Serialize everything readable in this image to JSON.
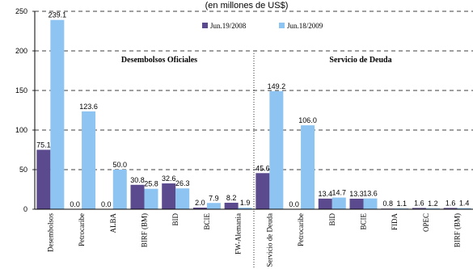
{
  "chart_data": {
    "type": "bar",
    "subtitle": "(en millones de US$)",
    "categories": [
      "Desembolsos",
      "Petrocaribe",
      "ALBA",
      "BIRF (BM)",
      "BID",
      "BCIE",
      "FW-Alemania",
      "Servicio de Deuda",
      "Petrocaribe",
      "BID",
      "BCIE",
      "FIDA",
      "OPEC",
      "BIRF (BM)"
    ],
    "series": [
      {
        "name": "Jun.19/2008",
        "color": "#5b4a8e",
        "values": [
          75.1,
          0.0,
          0.0,
          30.8,
          32.6,
          2.0,
          8.2,
          45.6,
          0.0,
          13.4,
          13.3,
          0.8,
          1.6,
          1.6
        ]
      },
      {
        "name": "Jun.18/2009",
        "color": "#8ec4f2",
        "values": [
          239.1,
          123.6,
          50.0,
          25.8,
          26.3,
          7.9,
          1.9,
          149.2,
          106.0,
          14.7,
          13.6,
          1.1,
          1.2,
          1.4
        ]
      }
    ],
    "value_labels": [
      [
        "75.1",
        "0.0",
        "0.0",
        "30.8",
        "32.6",
        "2.0",
        "8.2",
        "45.6",
        "0.0",
        "13.4",
        "13.3",
        "0.8",
        "1.6",
        "1.6"
      ],
      [
        "239.1",
        "123.6",
        "50.0",
        "25.8",
        "26.3",
        "7.9",
        "1.9",
        "149.2",
        "106.0",
        "14.7",
        "13.6",
        "1.1",
        "1.2",
        "1.4"
      ]
    ],
    "ylim": [
      0,
      250
    ],
    "yticks": [
      0,
      50,
      100,
      150,
      200,
      250
    ],
    "grid": "horizontal-dashed",
    "legend_placement": "top-center",
    "groups": [
      {
        "label": "Desembolsos Oficiales"
      },
      {
        "label": "Servicio de Deuda"
      }
    ],
    "divider_after_category": 6
  }
}
